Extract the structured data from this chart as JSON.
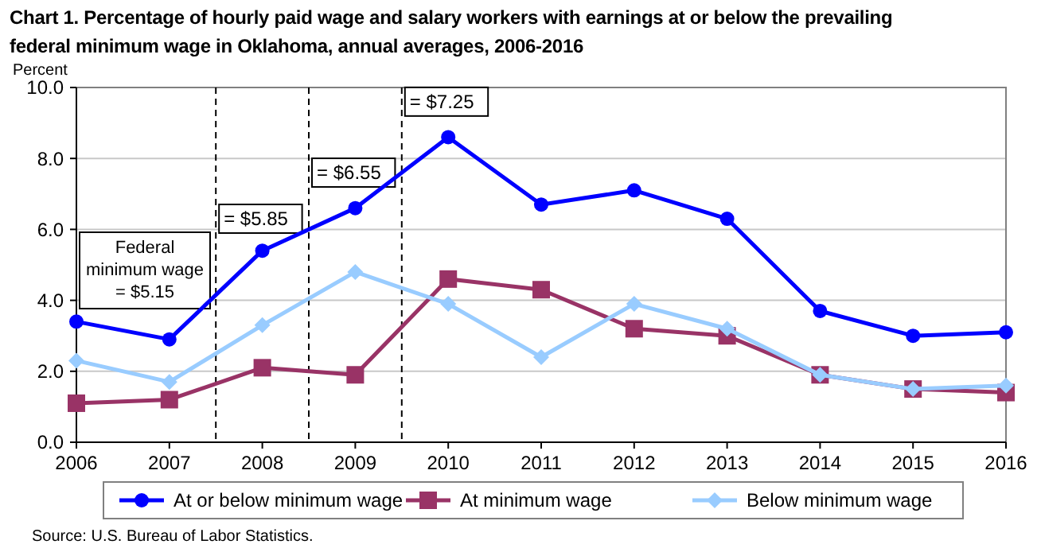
{
  "chart_data": {
    "type": "line",
    "title": "Chart 1. Percentage of hourly paid wage and salary workers with earnings at or below the prevailing federal minimum wage in Oklahoma, annual averages, 2006-2016",
    "ylabel": "Percent",
    "x": [
      2006,
      2007,
      2008,
      2009,
      2010,
      2011,
      2012,
      2013,
      2014,
      2015,
      2016
    ],
    "xlim": [
      2006,
      2016
    ],
    "xticks": [
      2006,
      2007,
      2008,
      2009,
      2010,
      2011,
      2012,
      2013,
      2014,
      2015,
      2016
    ],
    "series": [
      {
        "name": "At or below minimum wage",
        "color": "#0000ff",
        "marker": "circle",
        "values": [
          3.4,
          2.9,
          5.4,
          6.6,
          8.6,
          6.7,
          7.1,
          6.3,
          3.7,
          3.0,
          3.1
        ]
      },
      {
        "name": "At minimum wage",
        "color": "#993366",
        "marker": "square",
        "values": [
          1.1,
          1.2,
          2.1,
          1.9,
          4.6,
          4.3,
          3.2,
          3.0,
          1.9,
          1.5,
          1.4
        ]
      },
      {
        "name": "Below minimum wage",
        "color": "#99ccff",
        "marker": "diamond",
        "values": [
          2.3,
          1.7,
          3.3,
          4.8,
          3.9,
          2.4,
          3.9,
          3.2,
          1.9,
          1.5,
          1.6
        ]
      }
    ],
    "ylim": [
      0,
      10
    ],
    "yticks": [
      {
        "value": 0,
        "label": "0.0"
      },
      {
        "value": 2,
        "label": "2.0"
      },
      {
        "value": 4,
        "label": "4.0"
      },
      {
        "value": 6,
        "label": "6.0"
      },
      {
        "value": 8,
        "label": "8.0"
      },
      {
        "value": 10,
        "label": "10.0"
      }
    ],
    "grid": "y",
    "legend": "bottom",
    "line_style": "solid",
    "ref_lines": [
      {
        "axis": "x",
        "value": 2007.5,
        "line_style": "dashed"
      },
      {
        "axis": "x",
        "value": 2008.5,
        "line_style": "dashed"
      },
      {
        "axis": "x",
        "value": 2009.5,
        "line_style": "dashed"
      }
    ],
    "annotations": [
      "Federal minimum wage = $5.15",
      {
        "text": "= $5.85",
        "x": 2007.5,
        "y": 6.3
      },
      {
        "text": "= $6.55",
        "x": 2008.5,
        "y": 7.6
      },
      {
        "text": "= $7.25",
        "x": 2009.5,
        "y": 9.6
      },
      "Source: U.S. Bureau of Labor Statistics."
    ]
  }
}
